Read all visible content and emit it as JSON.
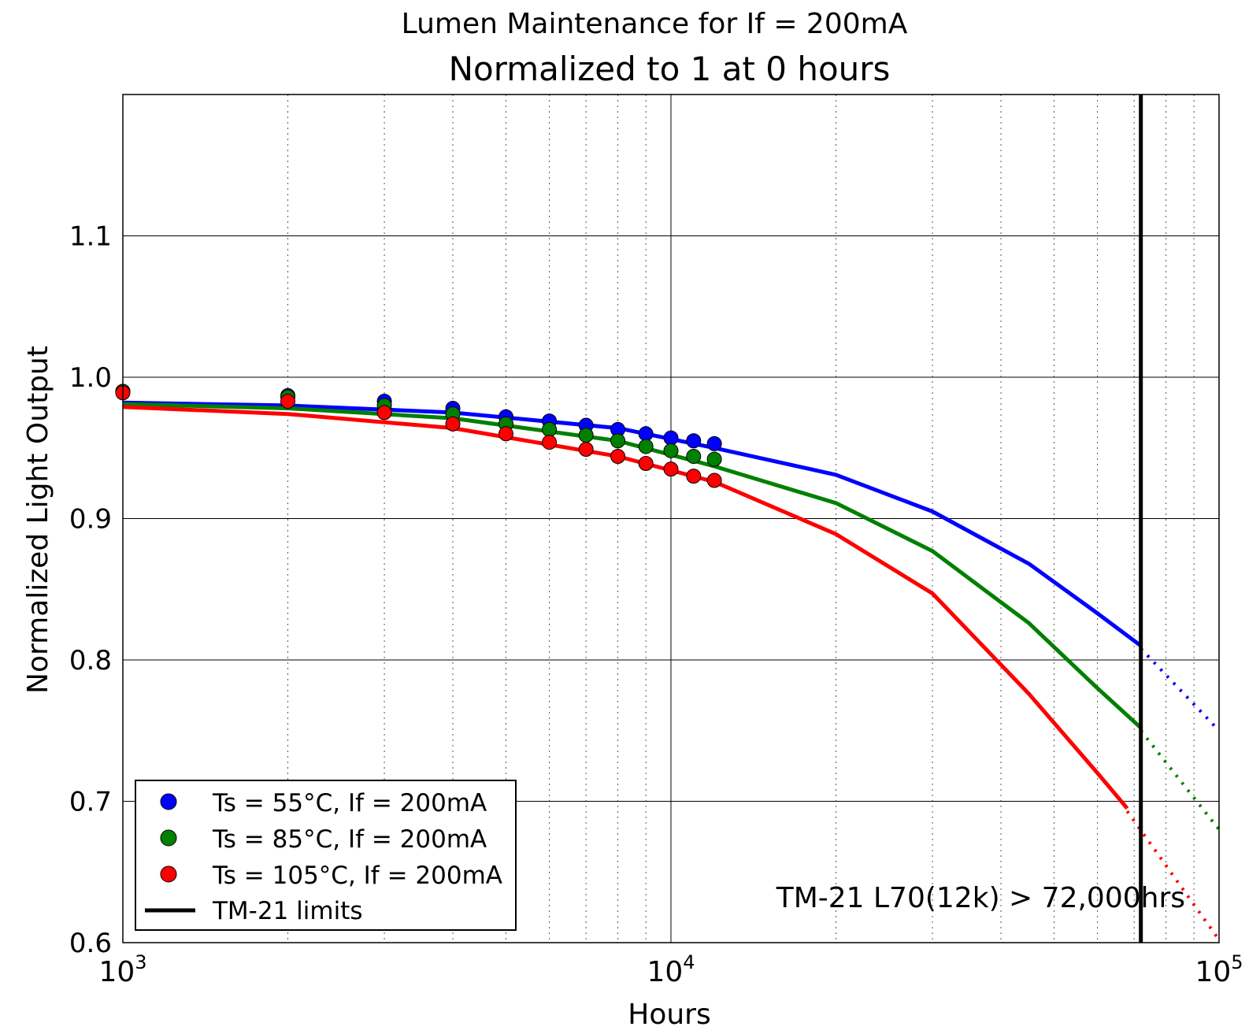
{
  "chart_data": {
    "type": "line",
    "title": "Lumen Maintenance for If = 200mA",
    "subtitle": "Normalized to 1 at 0 hours",
    "xlabel": "Hours",
    "ylabel": "Normalized Light Output",
    "xscale": "log",
    "xlim": [
      1000,
      100000
    ],
    "ylim": [
      0.6,
      1.2
    ],
    "grid": true,
    "x_ticks": [
      {
        "value": 1000,
        "base": "10",
        "exp": "3"
      },
      {
        "value": 10000,
        "base": "10",
        "exp": "4"
      },
      {
        "value": 100000,
        "base": "10",
        "exp": "5"
      }
    ],
    "y_ticks": [
      {
        "value": 0.6,
        "label": "0.6"
      },
      {
        "value": 0.7,
        "label": "0.7"
      },
      {
        "value": 0.8,
        "label": "0.8"
      },
      {
        "value": 0.9,
        "label": "0.9"
      },
      {
        "value": 1.0,
        "label": "1.0"
      },
      {
        "value": 1.1,
        "label": "1.1"
      }
    ],
    "series": [
      {
        "name": "Ts = 55°C, If = 200mA",
        "color": "#0000ff",
        "points": {
          "x": [
            1000,
            2000,
            3000,
            4000,
            5000,
            6000,
            7000,
            8000,
            9000,
            10000,
            11000,
            12000
          ],
          "y": [
            0.99,
            0.987,
            0.983,
            0.978,
            0.972,
            0.969,
            0.966,
            0.963,
            0.96,
            0.957,
            0.955,
            0.953
          ]
        },
        "fit": {
          "x": [
            1000,
            2000,
            4000,
            8000,
            12000,
            20000,
            30000,
            45000,
            60000,
            72000
          ],
          "y": [
            0.982,
            0.98,
            0.975,
            0.964,
            0.95,
            0.931,
            0.905,
            0.868,
            0.833,
            0.81
          ]
        },
        "extrapolation": {
          "x": [
            72000,
            100000
          ],
          "y": [
            0.808,
            0.75
          ]
        }
      },
      {
        "name": "Ts = 85°C, If = 200mA",
        "color": "#008000",
        "points": {
          "x": [
            1000,
            2000,
            3000,
            4000,
            5000,
            6000,
            7000,
            8000,
            9000,
            10000,
            11000,
            12000
          ],
          "y": [
            0.99,
            0.986,
            0.98,
            0.974,
            0.967,
            0.963,
            0.959,
            0.955,
            0.951,
            0.948,
            0.944,
            0.942
          ]
        },
        "fit": {
          "x": [
            1000,
            2000,
            4000,
            8000,
            12000,
            20000,
            30000,
            45000,
            60000,
            72000
          ],
          "y": [
            0.981,
            0.978,
            0.971,
            0.955,
            0.937,
            0.911,
            0.877,
            0.826,
            0.78,
            0.752
          ]
        },
        "extrapolation": {
          "x": [
            72000,
            100000
          ],
          "y": [
            0.75,
            0.68
          ]
        }
      },
      {
        "name": "Ts = 105°C, If = 200mA",
        "color": "#ff0000",
        "points": {
          "x": [
            1000,
            2000,
            3000,
            4000,
            5000,
            6000,
            7000,
            8000,
            9000,
            10000,
            11000,
            12000
          ],
          "y": [
            0.989,
            0.983,
            0.975,
            0.967,
            0.96,
            0.954,
            0.949,
            0.944,
            0.939,
            0.935,
            0.93,
            0.927
          ]
        },
        "fit": {
          "x": [
            1000,
            2000,
            4000,
            8000,
            12000,
            20000,
            30000,
            45000,
            60000,
            68000
          ],
          "y": [
            0.979,
            0.974,
            0.964,
            0.944,
            0.926,
            0.889,
            0.847,
            0.776,
            0.72,
            0.695
          ]
        },
        "extrapolation": {
          "x": [
            68000,
            100000
          ],
          "y": [
            0.693,
            0.602
          ]
        }
      }
    ],
    "limit": {
      "name": "TM-21 limits",
      "x": 72000,
      "color": "#000000"
    },
    "annotation": "TM-21 L70(12k) > 72,000hrs",
    "legend": {
      "position": "lower-left",
      "entries": [
        "Ts = 55°C, If = 200mA",
        "Ts = 85°C, If = 200mA",
        "Ts = 105°C, If = 200mA",
        "TM-21 limits"
      ]
    }
  }
}
